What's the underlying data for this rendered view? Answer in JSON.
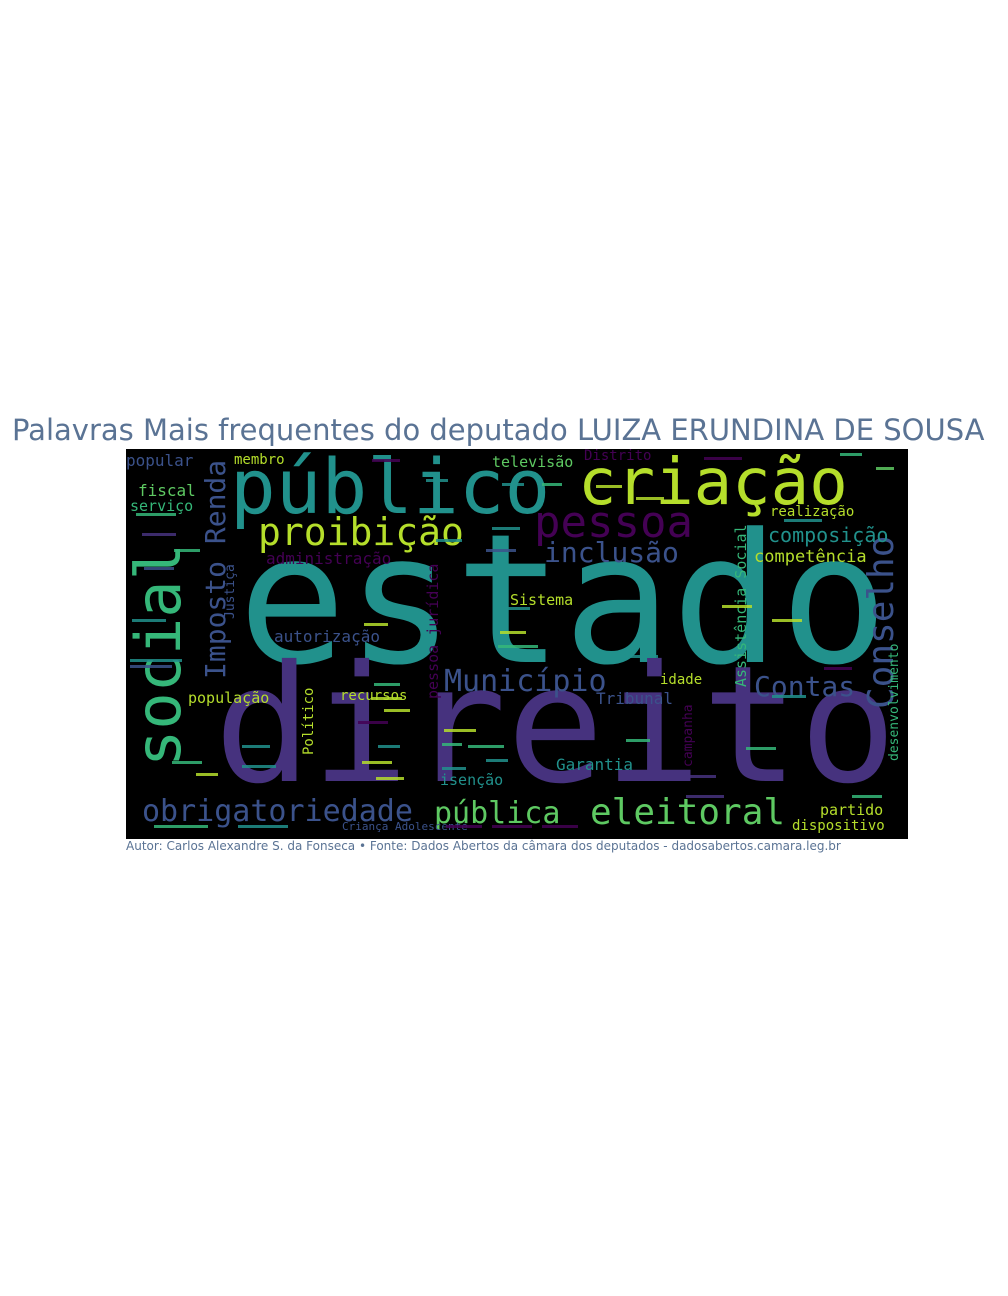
{
  "title": "Palavras Mais frequentes do deputado LUIZA ERUNDINA DE SOUSA",
  "caption": "Autor: Carlos Alexandre S. da Fonseca • Fonte: Dados Abertos da câmara dos deputados - dadosabertos.camara.leg.br",
  "palette": {
    "teal": "#21918c",
    "purple": "#46327e",
    "blue": "#3b528b",
    "green": "#5ec962",
    "lime": "#b5de2b",
    "midgreen": "#35b779",
    "violet": "#440154",
    "cyan": "#29788e"
  },
  "words": {
    "estado": "estado",
    "direito": "direito",
    "publico": "público",
    "criacao": "criação",
    "social": "social",
    "pessoa": "pessoa",
    "proibicao": "proibição",
    "inclusao": "inclusão",
    "obrigatoriedade": "obrigatoriedade",
    "publica": "pública",
    "eleitoral": "eleitoral",
    "municipio": "Município",
    "contas": "Contas",
    "conselho": "Conselho",
    "imposto_renda": "Imposto Renda",
    "composicao": "composição",
    "competencia": "competência",
    "realizacao": "realização",
    "autorizacao": "autorização",
    "administracao": "administração",
    "fiscal": "fiscal",
    "servico": "serviço",
    "popular": "popular",
    "membro": "membro",
    "televisao": "televisão",
    "distrito": "Distrito",
    "sistema": "Sistema",
    "populacao": "população",
    "recursos": "recursos",
    "tribunal": "Tribunal",
    "idade": "idade",
    "garantia": "Garantia",
    "isencao": "isenção",
    "partido": "partido",
    "dispositivo": "dispositivo",
    "assistencia_social": "Assistência Social",
    "desenvolvimento": "desenvolvimento",
    "pessoa_juridica": "pessoa jurídica",
    "politico": "Político",
    "justica": "Justiça",
    "campanha": "campanha",
    "crianca_adolescente": "Criança Adolescente"
  }
}
